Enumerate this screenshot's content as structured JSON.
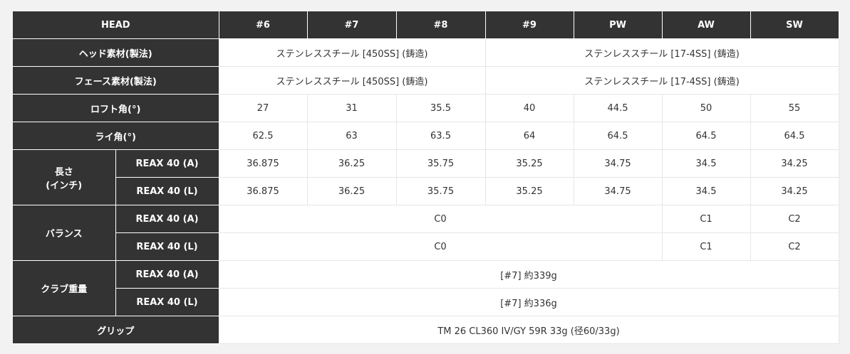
{
  "columns": [
    "HEAD",
    "#6",
    "#7",
    "#8",
    "#9",
    "PW",
    "AW",
    "SW"
  ],
  "rows": {
    "head_material": {
      "label": "ヘッド素材(製法)",
      "a": "ステンレススチール [450SS] (鋳造)",
      "b": "ステンレススチール [17-4SS] (鋳造)"
    },
    "face_material": {
      "label": "フェース素材(製法)",
      "a": "ステンレススチール [450SS] (鋳造)",
      "b": "ステンレススチール [17-4SS] (鋳造)"
    },
    "loft": {
      "label": "ロフト角(°)",
      "values": [
        "27",
        "31",
        "35.5",
        "40",
        "44.5",
        "50",
        "55"
      ]
    },
    "lie": {
      "label": "ライ角(°)",
      "values": [
        "62.5",
        "63",
        "63.5",
        "64",
        "64.5",
        "64.5",
        "64.5"
      ]
    },
    "length": {
      "label_1": "長さ",
      "label_2": "(インチ)",
      "a": {
        "label": "REAX 40 (A)",
        "values": [
          "36.875",
          "36.25",
          "35.75",
          "35.25",
          "34.75",
          "34.5",
          "34.25"
        ]
      },
      "l": {
        "label": "REAX 40 (L)",
        "values": [
          "36.875",
          "36.25",
          "35.75",
          "35.25",
          "34.75",
          "34.5",
          "34.25"
        ]
      }
    },
    "balance": {
      "label": "バランス",
      "a": {
        "label": "REAX 40 (A)",
        "main": "C0",
        "aw": "C1",
        "sw": "C2"
      },
      "l": {
        "label": "REAX 40 (L)",
        "main": "C0",
        "aw": "C1",
        "sw": "C2"
      }
    },
    "weight": {
      "label": "クラブ重量",
      "a": {
        "label": "REAX 40 (A)",
        "value": "[#7] 約339g"
      },
      "l": {
        "label": "REAX 40 (L)",
        "value": "[#7] 約336g"
      }
    },
    "grip": {
      "label": "グリップ",
      "value": "TM 26 CL360 IV/GY 59R 33g (径60/33g)"
    }
  },
  "colors": {
    "header_bg": "#333333",
    "page_bg": "#f2f2f2",
    "cell_bg": "#ffffff"
  }
}
